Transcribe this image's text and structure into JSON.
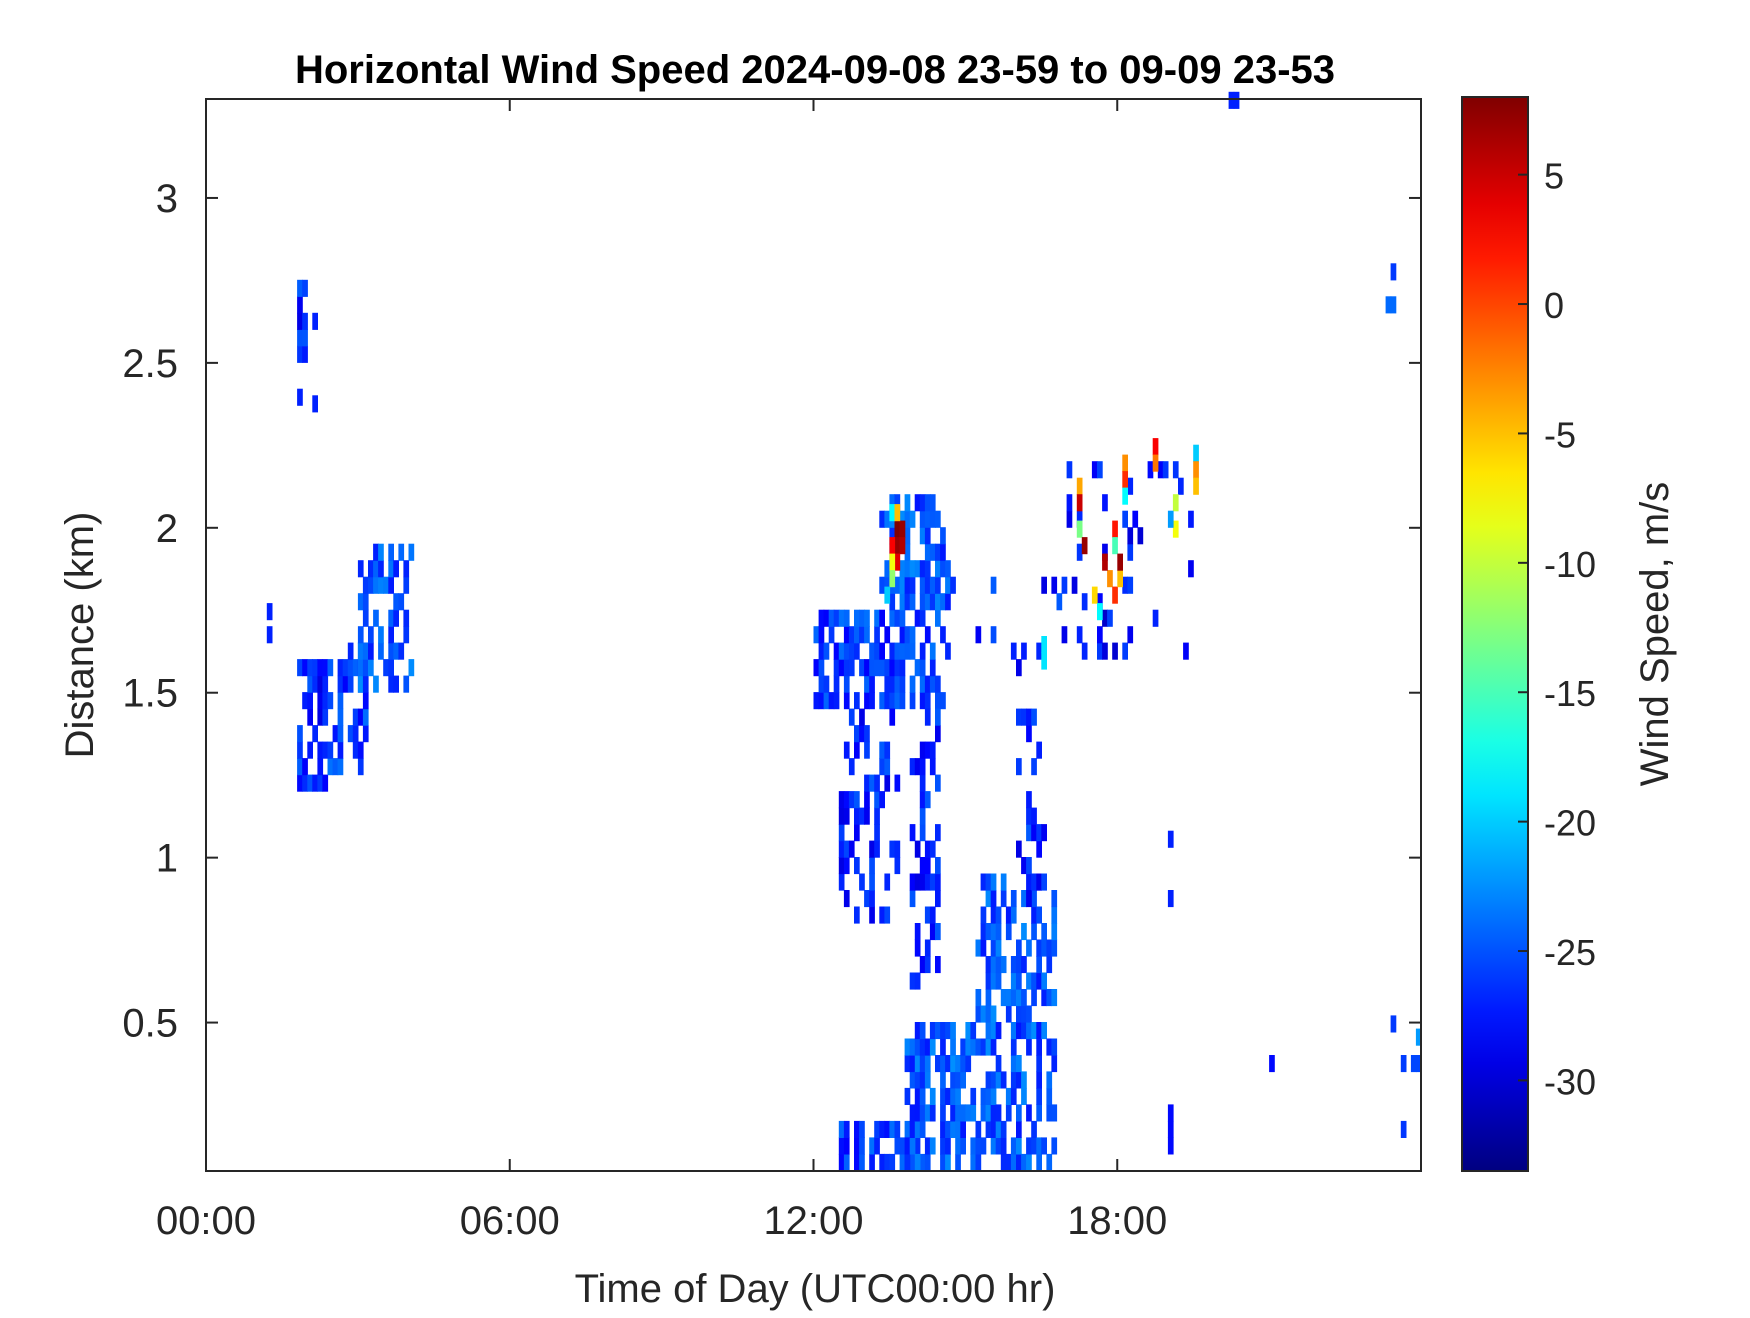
{
  "chart_data": {
    "type": "heatmap",
    "title": "Horizontal Wind Speed 2024-09-08 23-59 to 09-09 23-53",
    "xlabel": "Time of Day (UTC00:00 hr)",
    "ylabel": "Distance (km)",
    "x_unit": "hours",
    "xlim": [
      0,
      24
    ],
    "ylim": [
      0.05,
      3.3
    ],
    "x_ticks": [
      {
        "value": 0,
        "label": "00:00"
      },
      {
        "value": 6,
        "label": "06:00"
      },
      {
        "value": 12,
        "label": "12:00"
      },
      {
        "value": 18,
        "label": "18:00"
      }
    ],
    "y_ticks": [
      {
        "value": 0.5,
        "label": "0.5"
      },
      {
        "value": 1,
        "label": "1"
      },
      {
        "value": 1.5,
        "label": "1.5"
      },
      {
        "value": 2,
        "label": "2"
      },
      {
        "value": 2.5,
        "label": "2.5"
      },
      {
        "value": 3,
        "label": "3"
      }
    ],
    "colorbar": {
      "label": "Wind Speed, m/s",
      "colormap": "jet",
      "range": [
        -33.5,
        8
      ],
      "ticks": [
        {
          "value": 5,
          "label": "5"
        },
        {
          "value": 0,
          "label": "0"
        },
        {
          "value": -5,
          "label": "-5"
        },
        {
          "value": -10,
          "label": "-10"
        },
        {
          "value": -15,
          "label": "-15"
        },
        {
          "value": -20,
          "label": "-20"
        },
        {
          "value": -25,
          "label": "-25"
        },
        {
          "value": -30,
          "label": "-30"
        }
      ]
    },
    "grid": false,
    "cell_width_hours": 0.1,
    "cell_height_km": 0.05,
    "clusters": [
      {
        "x0": 1.8,
        "x1": 2.4,
        "y0": 1.2,
        "y1": 1.6,
        "v": -27,
        "density": 0.7
      },
      {
        "x0": 2.4,
        "x1": 3.2,
        "y0": 1.25,
        "y1": 1.65,
        "v": -26,
        "density": 0.55
      },
      {
        "x0": 3.0,
        "x1": 4.1,
        "y0": 1.5,
        "y1": 1.95,
        "v": -25,
        "density": 0.6
      },
      {
        "x0": 1.8,
        "x1": 2.0,
        "y0": 2.5,
        "y1": 2.72,
        "v": -27,
        "density": 0.8
      },
      {
        "x0": 12.0,
        "x1": 14.7,
        "y0": 1.45,
        "y1": 1.75,
        "v": -26,
        "density": 0.6
      },
      {
        "x0": 13.3,
        "x1": 14.7,
        "y0": 1.75,
        "y1": 2.1,
        "v": -25,
        "density": 0.6
      },
      {
        "x0": 12.5,
        "x1": 13.7,
        "y0": 0.8,
        "y1": 1.45,
        "v": -27,
        "density": 0.35
      },
      {
        "x0": 13.9,
        "x1": 14.5,
        "y0": 0.6,
        "y1": 1.45,
        "v": -27,
        "density": 0.45
      },
      {
        "x0": 12.5,
        "x1": 14.2,
        "y0": 0.05,
        "y1": 0.2,
        "v": -26,
        "density": 0.6
      },
      {
        "x0": 13.8,
        "x1": 15.2,
        "y0": 0.05,
        "y1": 0.5,
        "v": -25,
        "density": 0.7
      },
      {
        "x0": 15.2,
        "x1": 16.8,
        "y0": 0.05,
        "y1": 0.95,
        "v": -25,
        "density": 0.55
      },
      {
        "x0": 16.0,
        "x1": 16.6,
        "y0": 0.8,
        "y1": 1.45,
        "v": -27,
        "density": 0.3
      },
      {
        "x0": 14.5,
        "x1": 17.0,
        "y0": 1.55,
        "y1": 1.9,
        "v": -27,
        "density": 0.08
      },
      {
        "x0": 17.0,
        "x1": 19.5,
        "y0": 1.6,
        "y1": 2.2,
        "v": -28,
        "density": 0.12
      },
      {
        "x0": 23.6,
        "x1": 24.0,
        "y0": 0.05,
        "y1": 0.45,
        "v": -27,
        "density": 0.1
      }
    ],
    "highlights": [
      {
        "x": 13.6,
        "y": 1.97,
        "v": 8
      },
      {
        "x": 13.6,
        "y": 1.92,
        "v": 7
      },
      {
        "x": 13.7,
        "y": 1.97,
        "v": 7
      },
      {
        "x": 13.5,
        "y": 1.92,
        "v": 3
      },
      {
        "x": 13.7,
        "y": 1.92,
        "v": 6
      },
      {
        "x": 13.6,
        "y": 1.87,
        "v": 4
      },
      {
        "x": 13.5,
        "y": 1.87,
        "v": -8
      },
      {
        "x": 13.5,
        "y": 2.02,
        "v": -18
      },
      {
        "x": 13.6,
        "y": 2.02,
        "v": -5
      },
      {
        "x": 13.5,
        "y": 1.82,
        "v": -12
      },
      {
        "x": 13.4,
        "y": 1.77,
        "v": -20
      },
      {
        "x": 16.5,
        "y": 1.62,
        "v": -19
      },
      {
        "x": 16.5,
        "y": 1.57,
        "v": -19
      },
      {
        "x": 17.2,
        "y": 2.1,
        "v": -4
      },
      {
        "x": 17.2,
        "y": 2.05,
        "v": 5
      },
      {
        "x": 17.2,
        "y": 1.97,
        "v": -13
      },
      {
        "x": 17.3,
        "y": 1.92,
        "v": 7
      },
      {
        "x": 17.5,
        "y": 1.77,
        "v": -6
      },
      {
        "x": 17.6,
        "y": 1.72,
        "v": -18
      },
      {
        "x": 17.9,
        "y": 1.97,
        "v": 2
      },
      {
        "x": 17.9,
        "y": 1.92,
        "v": -15
      },
      {
        "x": 18.1,
        "y": 2.17,
        "v": -3
      },
      {
        "x": 18.1,
        "y": 2.12,
        "v": 1
      },
      {
        "x": 18.1,
        "y": 2.07,
        "v": -18
      },
      {
        "x": 17.8,
        "y": 1.82,
        "v": -3
      },
      {
        "x": 17.9,
        "y": 1.77,
        "v": 1
      },
      {
        "x": 18.0,
        "y": 1.82,
        "v": -5
      },
      {
        "x": 18.0,
        "y": 1.87,
        "v": 7
      },
      {
        "x": 17.7,
        "y": 1.87,
        "v": 6
      },
      {
        "x": 18.7,
        "y": 2.22,
        "v": 3
      },
      {
        "x": 18.7,
        "y": 2.17,
        "v": -2
      },
      {
        "x": 19.5,
        "y": 2.2,
        "v": -20
      },
      {
        "x": 19.5,
        "y": 2.15,
        "v": -3
      },
      {
        "x": 19.5,
        "y": 2.1,
        "v": -5
      },
      {
        "x": 19.1,
        "y": 2.05,
        "v": -10
      },
      {
        "x": 19.1,
        "y": 1.97,
        "v": -8
      },
      {
        "x": 19.0,
        "y": 2.0,
        "v": -22
      },
      {
        "x": 20.2,
        "y": 3.27,
        "v": -27
      },
      {
        "x": 20.3,
        "y": 3.27,
        "v": -27
      },
      {
        "x": 23.3,
        "y": 2.65,
        "v": -24
      },
      {
        "x": 23.4,
        "y": 2.65,
        "v": -24
      },
      {
        "x": 23.4,
        "y": 2.75,
        "v": -26
      },
      {
        "x": 23.9,
        "y": 0.43,
        "v": -22
      },
      {
        "x": 23.4,
        "y": 0.47,
        "v": -26
      },
      {
        "x": 21.0,
        "y": 0.35,
        "v": -28
      },
      {
        "x": 19.0,
        "y": 1.03,
        "v": -27
      },
      {
        "x": 19.0,
        "y": 0.85,
        "v": -27
      },
      {
        "x": 19.0,
        "y": 0.2,
        "v": -28
      },
      {
        "x": 19.0,
        "y": 0.15,
        "v": -28
      },
      {
        "x": 19.0,
        "y": 0.1,
        "v": -28
      },
      {
        "x": 1.2,
        "y": 1.72,
        "v": -27
      },
      {
        "x": 1.2,
        "y": 1.65,
        "v": -27
      },
      {
        "x": 1.8,
        "y": 2.37,
        "v": -27
      },
      {
        "x": 2.1,
        "y": 2.35,
        "v": -27
      },
      {
        "x": 2.1,
        "y": 2.6,
        "v": -27
      }
    ]
  }
}
